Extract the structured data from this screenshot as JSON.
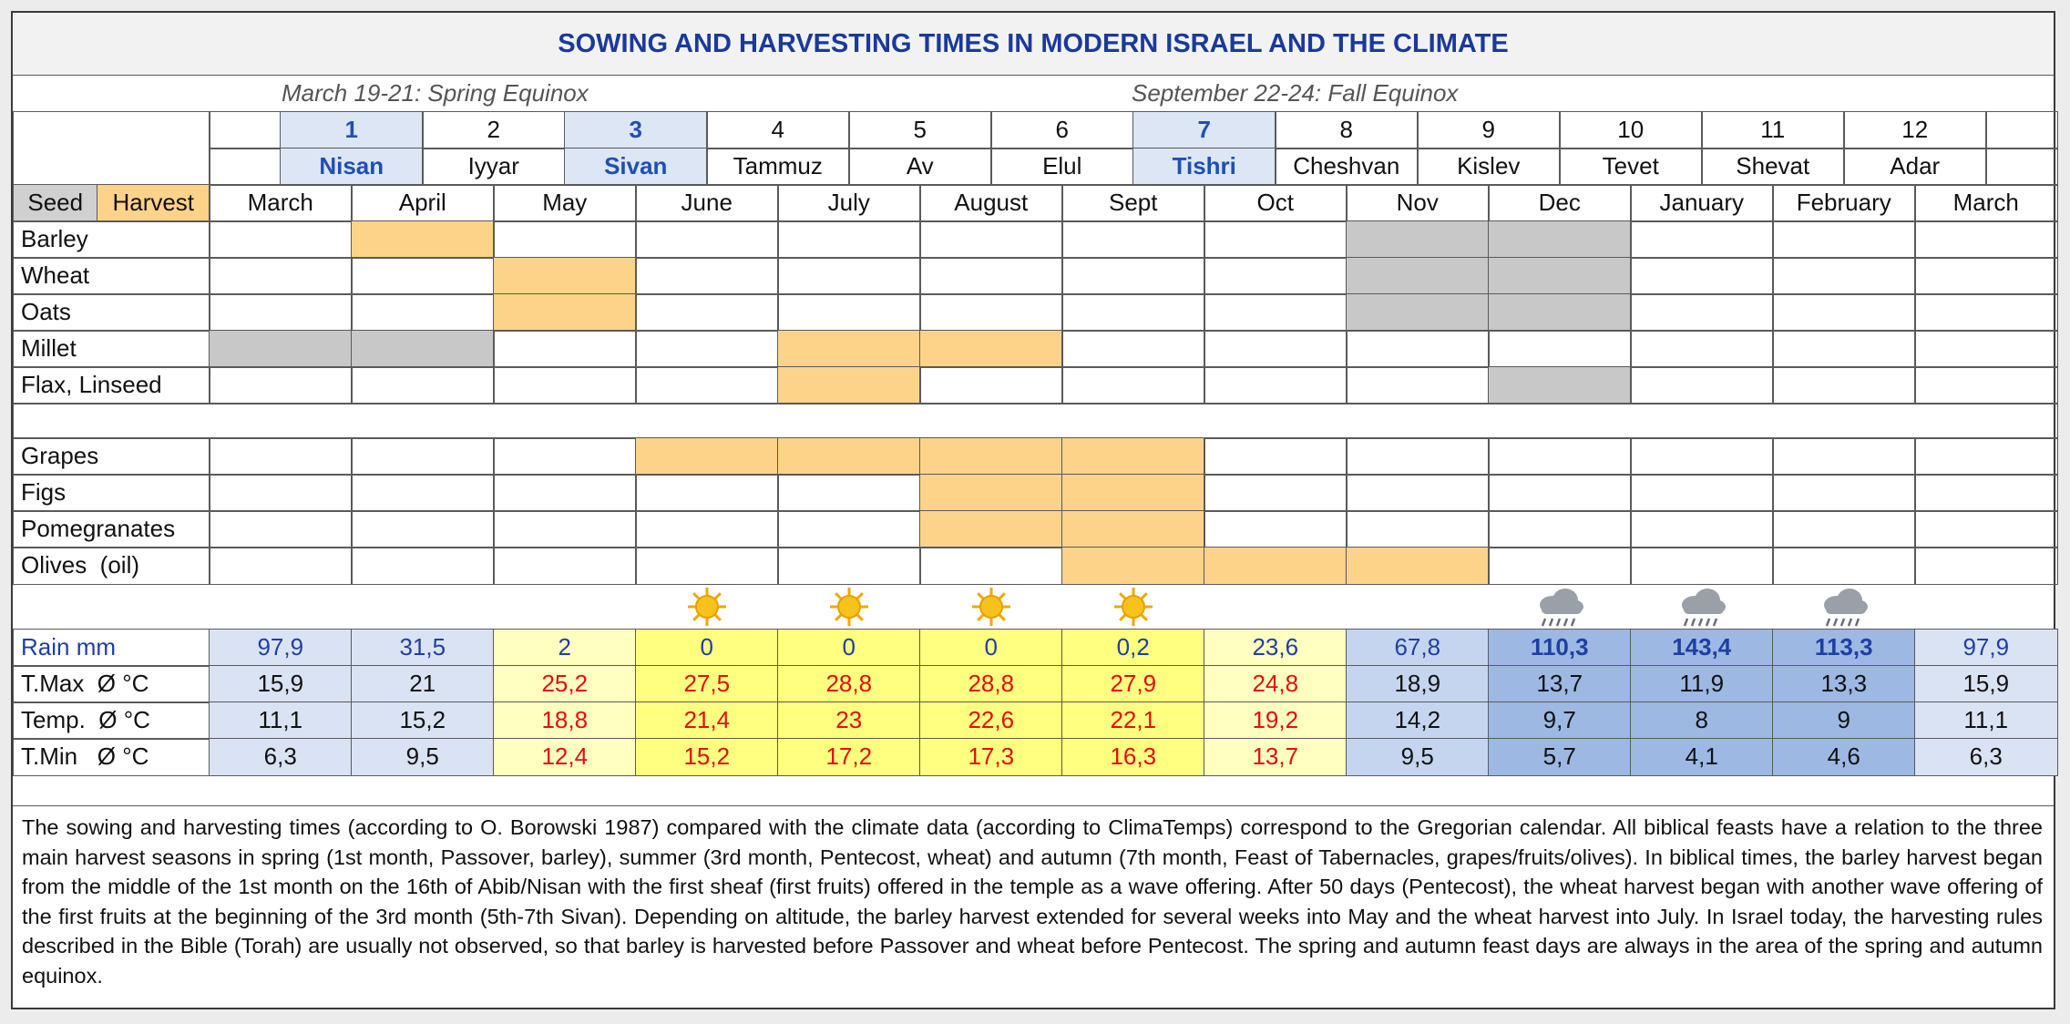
{
  "title": "SOWING AND HARVESTING TIMES IN MODERN ISRAEL AND THE CLIMATE",
  "equinox": {
    "spring": "March 19-21: Spring Equinox",
    "fall": "September 22-24: Fall Equinox"
  },
  "hebrew_months": [
    {
      "number": 1,
      "name": "Nisan"
    },
    {
      "number": 2,
      "name": "Iyyar"
    },
    {
      "number": 3,
      "name": "Sivan"
    },
    {
      "number": 4,
      "name": "Tammuz"
    },
    {
      "number": 5,
      "name": "Av"
    },
    {
      "number": 6,
      "name": "Elul"
    },
    {
      "number": 7,
      "name": "Tishri"
    },
    {
      "number": 8,
      "name": "Cheshvan"
    },
    {
      "number": 9,
      "name": "Kislev"
    },
    {
      "number": 10,
      "name": "Tevet"
    },
    {
      "number": 11,
      "name": "Shevat"
    },
    {
      "number": 12,
      "name": "Adar"
    }
  ],
  "header": {
    "seed": "Seed",
    "harvest": "Harvest",
    "months": [
      "March",
      "April",
      "May",
      "June",
      "July",
      "August",
      "Sept",
      "Oct",
      "Nov",
      "Dec",
      "January",
      "February",
      "March"
    ]
  },
  "grains": [
    "Barley",
    "Wheat",
    "Oats",
    "Millet",
    "Flax, Linseed"
  ],
  "fruits": [
    "Grapes",
    "Figs",
    "Pomegranates",
    "Olives  (oil)"
  ],
  "climate": [
    {
      "label": "Rain mm",
      "values": [
        "97,9",
        "31,5",
        "2",
        "0",
        "0",
        "0",
        "0,2",
        "23,6",
        "67,8",
        "110,3",
        "143,4",
        "113,3",
        "97,9"
      ]
    },
    {
      "label": "T.Max  Ø °C",
      "values": [
        "15,9",
        "21",
        "25,2",
        "27,5",
        "28,8",
        "28,8",
        "27,9",
        "24,8",
        "18,9",
        "13,7",
        "11,9",
        "13,3",
        "15,9"
      ]
    },
    {
      "label": "Temp.  Ø °C",
      "values": [
        "11,1",
        "15,2",
        "18,8",
        "21,4",
        "23",
        "22,6",
        "22,1",
        "19,2",
        "14,2",
        "9,7",
        "8",
        "9",
        "11,1"
      ]
    },
    {
      "label": "T.Min   Ø °C",
      "values": [
        "6,3",
        "9,5",
        "12,4",
        "15,2",
        "17,2",
        "17,3",
        "16,3",
        "13,7",
        "9,5",
        "5,7",
        "4,1",
        "4,6",
        "6,3"
      ]
    }
  ],
  "note": "The sowing and harvesting times (according to O. Borowski 1987) compared with the climate data (according to ClimaTemps) correspond to the Gregorian calendar. All biblical feasts have a relation to the three main harvest seasons in spring (1st month, Passover, barley), summer (3rd month, Pentecost, wheat) and autumn (7th month, Feast of Tabernacles, grapes/fruits/olives). In biblical times, the barley harvest began from the middle of the 1st month on the 16th of Abib/Nisan with the first sheaf (first fruits) offered in the temple as a wave offering. After 50 days (Pentecost), the wheat harvest began with another wave offering of the first fruits at the beginning of the 3rd month (5th-7th Sivan). Depending on altitude, the barley harvest extended for several weeks into May and the wheat harvest into July. In Israel today, the harvesting rules described in the Bible (Torah) are usually not observed, so that barley is harvested before Passover and wheat before Pentecost. The spring and autumn feast days are always in the area of the spring and autumn equinox."
}
